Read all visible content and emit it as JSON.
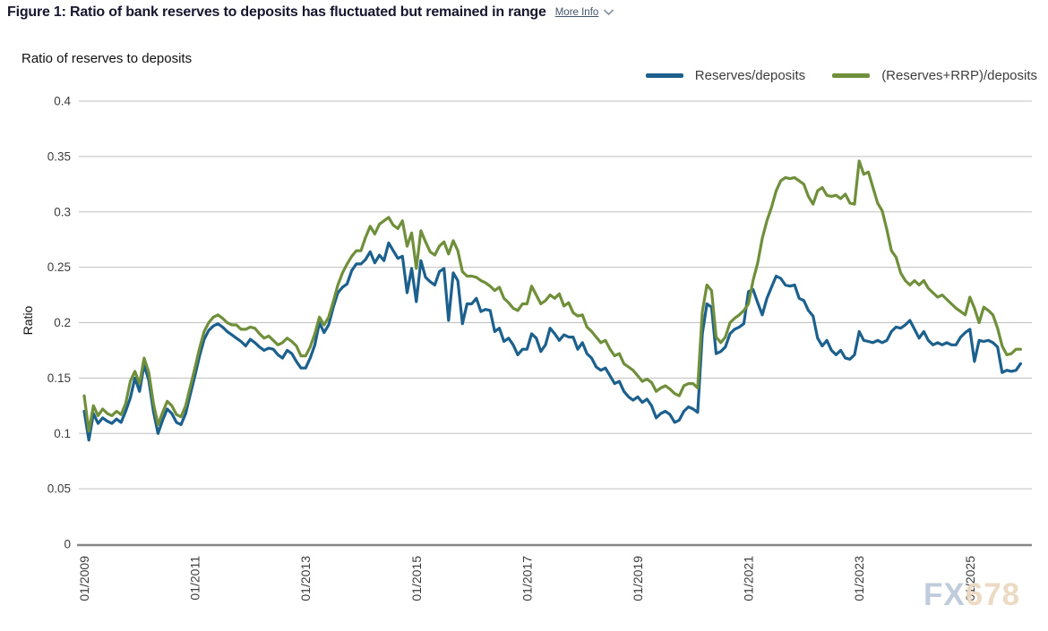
{
  "header": {
    "title": "Figure 1: Ratio of bank reserves to deposits has fluctuated but remained in range",
    "more_info_label": "More Info"
  },
  "chart": {
    "subtitle": "Ratio of reserves to deposits",
    "y_axis_title": "Ratio"
  },
  "watermark": {
    "part1": "FX",
    "part2": "678"
  },
  "chart_data": {
    "type": "line",
    "title": "Figure 1: Ratio of bank reserves to deposits has fluctuated but remained in range",
    "subtitle": "Ratio of reserves to deposits",
    "ylabel": "Ratio",
    "xlabel": "",
    "ylim": [
      0,
      0.4
    ],
    "y_ticks": [
      0,
      0.05,
      0.1,
      0.15,
      0.2,
      0.25,
      0.3,
      0.35,
      0.4
    ],
    "x_tick_labels": [
      "01/2009",
      "01/2011",
      "01/2013",
      "01/2015",
      "01/2017",
      "01/2019",
      "01/2021",
      "01/2023",
      "01/2025"
    ],
    "x_start": "01/2009",
    "x_end": "12/2025",
    "frequency": "monthly",
    "grid": "horizontal",
    "legend_position": "top-right",
    "series": [
      {
        "name": "Reserves/deposits",
        "color": "#1c608e",
        "values": [
          0.12,
          0.094,
          0.118,
          0.109,
          0.114,
          0.111,
          0.109,
          0.113,
          0.11,
          0.12,
          0.132,
          0.15,
          0.138,
          0.162,
          0.148,
          0.12,
          0.1,
          0.112,
          0.122,
          0.118,
          0.11,
          0.108,
          0.118,
          0.135,
          0.152,
          0.17,
          0.185,
          0.193,
          0.197,
          0.199,
          0.196,
          0.192,
          0.189,
          0.186,
          0.183,
          0.179,
          0.185,
          0.182,
          0.178,
          0.175,
          0.177,
          0.176,
          0.171,
          0.168,
          0.175,
          0.172,
          0.165,
          0.159,
          0.159,
          0.168,
          0.18,
          0.2,
          0.191,
          0.198,
          0.214,
          0.227,
          0.232,
          0.235,
          0.247,
          0.253,
          0.253,
          0.257,
          0.264,
          0.254,
          0.261,
          0.256,
          0.272,
          0.265,
          0.258,
          0.26,
          0.227,
          0.249,
          0.219,
          0.256,
          0.241,
          0.237,
          0.234,
          0.246,
          0.249,
          0.202,
          0.245,
          0.238,
          0.199,
          0.217,
          0.217,
          0.222,
          0.21,
          0.212,
          0.211,
          0.192,
          0.195,
          0.183,
          0.186,
          0.18,
          0.171,
          0.176,
          0.176,
          0.19,
          0.186,
          0.174,
          0.18,
          0.195,
          0.19,
          0.184,
          0.189,
          0.187,
          0.187,
          0.176,
          0.182,
          0.172,
          0.168,
          0.16,
          0.157,
          0.159,
          0.152,
          0.145,
          0.147,
          0.138,
          0.133,
          0.13,
          0.133,
          0.128,
          0.131,
          0.125,
          0.114,
          0.118,
          0.12,
          0.117,
          0.11,
          0.112,
          0.12,
          0.124,
          0.122,
          0.119,
          0.19,
          0.217,
          0.214,
          0.172,
          0.174,
          0.178,
          0.19,
          0.194,
          0.196,
          0.199,
          0.228,
          0.23,
          0.218,
          0.207,
          0.222,
          0.232,
          0.242,
          0.24,
          0.234,
          0.233,
          0.234,
          0.222,
          0.22,
          0.211,
          0.206,
          0.186,
          0.179,
          0.184,
          0.175,
          0.171,
          0.175,
          0.168,
          0.167,
          0.171,
          0.192,
          0.184,
          0.183,
          0.182,
          0.184,
          0.182,
          0.184,
          0.192,
          0.196,
          0.195,
          0.198,
          0.202,
          0.194,
          0.186,
          0.192,
          0.184,
          0.18,
          0.182,
          0.18,
          0.182,
          0.18,
          0.18,
          0.187,
          0.191,
          0.194,
          0.165,
          0.184,
          0.183,
          0.184,
          0.182,
          0.178,
          0.155,
          0.157,
          0.156,
          0.157,
          0.163
        ]
      },
      {
        "name": "(Reserves+RRP)/deposits",
        "color": "#6f8f3b",
        "values": [
          0.134,
          0.102,
          0.125,
          0.116,
          0.122,
          0.118,
          0.116,
          0.12,
          0.117,
          0.127,
          0.147,
          0.156,
          0.145,
          0.168,
          0.155,
          0.127,
          0.108,
          0.119,
          0.129,
          0.125,
          0.117,
          0.115,
          0.125,
          0.142,
          0.159,
          0.177,
          0.192,
          0.2,
          0.205,
          0.207,
          0.204,
          0.2,
          0.198,
          0.198,
          0.194,
          0.194,
          0.196,
          0.195,
          0.19,
          0.186,
          0.188,
          0.184,
          0.18,
          0.182,
          0.186,
          0.183,
          0.179,
          0.17,
          0.17,
          0.178,
          0.19,
          0.205,
          0.198,
          0.205,
          0.219,
          0.234,
          0.245,
          0.253,
          0.26,
          0.265,
          0.265,
          0.277,
          0.287,
          0.28,
          0.289,
          0.292,
          0.295,
          0.288,
          0.285,
          0.292,
          0.269,
          0.281,
          0.249,
          0.283,
          0.273,
          0.264,
          0.261,
          0.269,
          0.273,
          0.262,
          0.274,
          0.265,
          0.246,
          0.242,
          0.242,
          0.241,
          0.238,
          0.236,
          0.233,
          0.229,
          0.232,
          0.222,
          0.218,
          0.213,
          0.211,
          0.217,
          0.217,
          0.233,
          0.225,
          0.217,
          0.22,
          0.225,
          0.222,
          0.226,
          0.215,
          0.218,
          0.209,
          0.206,
          0.207,
          0.196,
          0.192,
          0.187,
          0.182,
          0.184,
          0.176,
          0.17,
          0.172,
          0.163,
          0.16,
          0.157,
          0.152,
          0.147,
          0.149,
          0.146,
          0.138,
          0.141,
          0.143,
          0.14,
          0.136,
          0.134,
          0.143,
          0.145,
          0.145,
          0.141,
          0.21,
          0.234,
          0.229,
          0.187,
          0.182,
          0.187,
          0.2,
          0.204,
          0.207,
          0.211,
          0.217,
          0.238,
          0.254,
          0.276,
          0.292,
          0.304,
          0.319,
          0.328,
          0.331,
          0.33,
          0.331,
          0.328,
          0.325,
          0.314,
          0.307,
          0.319,
          0.322,
          0.315,
          0.314,
          0.315,
          0.312,
          0.316,
          0.308,
          0.307,
          0.346,
          0.334,
          0.336,
          0.322,
          0.308,
          0.301,
          0.284,
          0.265,
          0.259,
          0.245,
          0.238,
          0.234,
          0.238,
          0.234,
          0.238,
          0.231,
          0.227,
          0.223,
          0.225,
          0.221,
          0.217,
          0.213,
          0.21,
          0.207,
          0.223,
          0.213,
          0.2,
          0.214,
          0.211,
          0.207,
          0.195,
          0.179,
          0.171,
          0.172,
          0.176,
          0.176
        ]
      }
    ]
  }
}
